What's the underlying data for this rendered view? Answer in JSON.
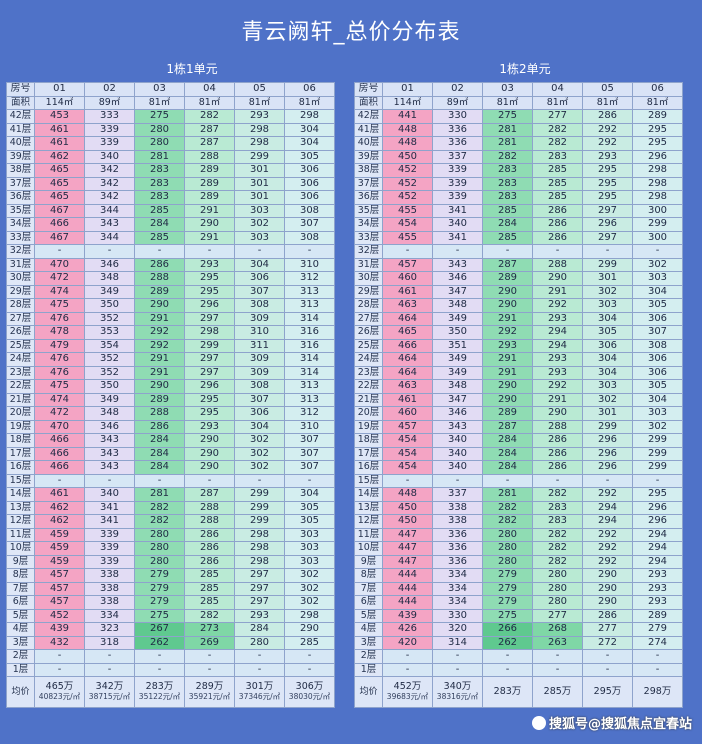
{
  "title": "青云阙轩_总价分布表",
  "watermark": "搜狐号@搜狐焦点宜春站",
  "labels": {
    "room": "房号",
    "area": "面积",
    "avg": "均价"
  },
  "colors": {
    "background": "#4f72c8",
    "pink": "#f4a4c4",
    "green": "#8fdcb3"
  },
  "buildings": [
    {
      "name": "1栋1单元",
      "rooms": [
        "01",
        "02",
        "03",
        "04",
        "05",
        "06"
      ],
      "areas": [
        "114㎡",
        "89㎡",
        "81㎡",
        "81㎡",
        "81㎡",
        "81㎡"
      ],
      "floors": [
        {
          "f": "42层",
          "v": [
            "453",
            "333",
            "275",
            "282",
            "293",
            "298"
          ]
        },
        {
          "f": "41层",
          "v": [
            "461",
            "339",
            "280",
            "287",
            "298",
            "304"
          ]
        },
        {
          "f": "40层",
          "v": [
            "461",
            "339",
            "280",
            "287",
            "298",
            "304"
          ]
        },
        {
          "f": "39层",
          "v": [
            "462",
            "340",
            "281",
            "288",
            "299",
            "305"
          ]
        },
        {
          "f": "38层",
          "v": [
            "465",
            "342",
            "283",
            "289",
            "301",
            "306"
          ]
        },
        {
          "f": "37层",
          "v": [
            "465",
            "342",
            "283",
            "289",
            "301",
            "306"
          ]
        },
        {
          "f": "36层",
          "v": [
            "465",
            "342",
            "283",
            "289",
            "301",
            "306"
          ]
        },
        {
          "f": "35层",
          "v": [
            "467",
            "344",
            "285",
            "291",
            "303",
            "308"
          ]
        },
        {
          "f": "34层",
          "v": [
            "466",
            "343",
            "284",
            "290",
            "302",
            "307"
          ]
        },
        {
          "f": "33层",
          "v": [
            "467",
            "344",
            "285",
            "291",
            "303",
            "308"
          ]
        },
        {
          "f": "32层",
          "v": [
            "-",
            "-",
            "-",
            "-",
            "-",
            "-"
          ]
        },
        {
          "f": "31层",
          "v": [
            "470",
            "346",
            "286",
            "293",
            "304",
            "310"
          ]
        },
        {
          "f": "30层",
          "v": [
            "472",
            "348",
            "288",
            "295",
            "306",
            "312"
          ]
        },
        {
          "f": "29层",
          "v": [
            "474",
            "349",
            "289",
            "295",
            "307",
            "313"
          ]
        },
        {
          "f": "28层",
          "v": [
            "475",
            "350",
            "290",
            "296",
            "308",
            "313"
          ]
        },
        {
          "f": "27层",
          "v": [
            "476",
            "352",
            "291",
            "297",
            "309",
            "314"
          ]
        },
        {
          "f": "26层",
          "v": [
            "478",
            "353",
            "292",
            "298",
            "310",
            "316"
          ]
        },
        {
          "f": "25层",
          "v": [
            "479",
            "354",
            "292",
            "299",
            "311",
            "316"
          ]
        },
        {
          "f": "24层",
          "v": [
            "476",
            "352",
            "291",
            "297",
            "309",
            "314"
          ]
        },
        {
          "f": "23层",
          "v": [
            "476",
            "352",
            "291",
            "297",
            "309",
            "314"
          ]
        },
        {
          "f": "22层",
          "v": [
            "475",
            "350",
            "290",
            "296",
            "308",
            "313"
          ]
        },
        {
          "f": "21层",
          "v": [
            "474",
            "349",
            "289",
            "295",
            "307",
            "313"
          ]
        },
        {
          "f": "20层",
          "v": [
            "472",
            "348",
            "288",
            "295",
            "306",
            "312"
          ]
        },
        {
          "f": "19层",
          "v": [
            "470",
            "346",
            "286",
            "293",
            "304",
            "310"
          ]
        },
        {
          "f": "18层",
          "v": [
            "466",
            "343",
            "284",
            "290",
            "302",
            "307"
          ]
        },
        {
          "f": "17层",
          "v": [
            "466",
            "343",
            "284",
            "290",
            "302",
            "307"
          ]
        },
        {
          "f": "16层",
          "v": [
            "466",
            "343",
            "284",
            "290",
            "302",
            "307"
          ]
        },
        {
          "f": "15层",
          "v": [
            "-",
            "-",
            "-",
            "-",
            "-",
            "-"
          ]
        },
        {
          "f": "14层",
          "v": [
            "461",
            "340",
            "281",
            "287",
            "299",
            "304"
          ]
        },
        {
          "f": "13层",
          "v": [
            "462",
            "341",
            "282",
            "288",
            "299",
            "305"
          ]
        },
        {
          "f": "12层",
          "v": [
            "462",
            "341",
            "282",
            "288",
            "299",
            "305"
          ]
        },
        {
          "f": "11层",
          "v": [
            "459",
            "339",
            "280",
            "286",
            "298",
            "303"
          ]
        },
        {
          "f": "10层",
          "v": [
            "459",
            "339",
            "280",
            "286",
            "298",
            "303"
          ]
        },
        {
          "f": "9层",
          "v": [
            "459",
            "339",
            "280",
            "286",
            "298",
            "303"
          ]
        },
        {
          "f": "8层",
          "v": [
            "457",
            "338",
            "279",
            "285",
            "297",
            "302"
          ]
        },
        {
          "f": "7层",
          "v": [
            "457",
            "338",
            "279",
            "285",
            "297",
            "302"
          ]
        },
        {
          "f": "6层",
          "v": [
            "457",
            "338",
            "279",
            "285",
            "297",
            "302"
          ]
        },
        {
          "f": "5层",
          "v": [
            "452",
            "334",
            "275",
            "282",
            "293",
            "298"
          ]
        },
        {
          "f": "4层",
          "v": [
            "439",
            "323",
            "267",
            "273",
            "284",
            "290"
          ]
        },
        {
          "f": "3层",
          "v": [
            "432",
            "318",
            "262",
            "269",
            "280",
            "285"
          ]
        },
        {
          "f": "2层",
          "v": [
            "-",
            "-",
            "-",
            "-",
            "-",
            "-"
          ]
        },
        {
          "f": "1层",
          "v": [
            "-",
            "-",
            "-",
            "-",
            "-",
            "-"
          ]
        }
      ],
      "avg": [
        {
          "t": "465万",
          "u": "40823元/㎡"
        },
        {
          "t": "342万",
          "u": "38715元/㎡"
        },
        {
          "t": "283万",
          "u": "35122元/㎡"
        },
        {
          "t": "289万",
          "u": "35921元/㎡"
        },
        {
          "t": "301万",
          "u": "37346元/㎡"
        },
        {
          "t": "306万",
          "u": "38030元/㎡"
        }
      ]
    },
    {
      "name": "1栋2单元",
      "rooms": [
        "01",
        "02",
        "03",
        "04",
        "05",
        "06"
      ],
      "areas": [
        "114㎡",
        "89㎡",
        "81㎡",
        "81㎡",
        "81㎡",
        "81㎡"
      ],
      "floors": [
        {
          "f": "42层",
          "v": [
            "441",
            "330",
            "275",
            "277",
            "286",
            "289"
          ]
        },
        {
          "f": "41层",
          "v": [
            "448",
            "336",
            "281",
            "282",
            "292",
            "295"
          ]
        },
        {
          "f": "40层",
          "v": [
            "448",
            "336",
            "281",
            "282",
            "292",
            "295"
          ]
        },
        {
          "f": "39层",
          "v": [
            "450",
            "337",
            "282",
            "283",
            "293",
            "296"
          ]
        },
        {
          "f": "38层",
          "v": [
            "452",
            "339",
            "283",
            "285",
            "295",
            "298"
          ]
        },
        {
          "f": "37层",
          "v": [
            "452",
            "339",
            "283",
            "285",
            "295",
            "298"
          ]
        },
        {
          "f": "36层",
          "v": [
            "452",
            "339",
            "283",
            "285",
            "295",
            "298"
          ]
        },
        {
          "f": "35层",
          "v": [
            "455",
            "341",
            "285",
            "286",
            "297",
            "300"
          ]
        },
        {
          "f": "34层",
          "v": [
            "454",
            "340",
            "284",
            "286",
            "296",
            "299"
          ]
        },
        {
          "f": "33层",
          "v": [
            "455",
            "341",
            "285",
            "286",
            "297",
            "300"
          ]
        },
        {
          "f": "32层",
          "v": [
            "-",
            "-",
            "-",
            "-",
            "-",
            "-"
          ]
        },
        {
          "f": "31层",
          "v": [
            "457",
            "343",
            "287",
            "288",
            "299",
            "302"
          ]
        },
        {
          "f": "30层",
          "v": [
            "460",
            "346",
            "289",
            "290",
            "301",
            "303"
          ]
        },
        {
          "f": "29层",
          "v": [
            "461",
            "347",
            "290",
            "291",
            "302",
            "304"
          ]
        },
        {
          "f": "28层",
          "v": [
            "463",
            "348",
            "290",
            "292",
            "303",
            "305"
          ]
        },
        {
          "f": "27层",
          "v": [
            "464",
            "349",
            "291",
            "293",
            "304",
            "306"
          ]
        },
        {
          "f": "26层",
          "v": [
            "465",
            "350",
            "292",
            "294",
            "305",
            "307"
          ]
        },
        {
          "f": "25层",
          "v": [
            "466",
            "351",
            "293",
            "294",
            "306",
            "308"
          ]
        },
        {
          "f": "24层",
          "v": [
            "464",
            "349",
            "291",
            "293",
            "304",
            "306"
          ]
        },
        {
          "f": "23层",
          "v": [
            "464",
            "349",
            "291",
            "293",
            "304",
            "306"
          ]
        },
        {
          "f": "22层",
          "v": [
            "463",
            "348",
            "290",
            "292",
            "303",
            "305"
          ]
        },
        {
          "f": "21层",
          "v": [
            "461",
            "347",
            "290",
            "291",
            "302",
            "304"
          ]
        },
        {
          "f": "20层",
          "v": [
            "460",
            "346",
            "289",
            "290",
            "301",
            "303"
          ]
        },
        {
          "f": "19层",
          "v": [
            "457",
            "343",
            "287",
            "288",
            "299",
            "302"
          ]
        },
        {
          "f": "18层",
          "v": [
            "454",
            "340",
            "284",
            "286",
            "296",
            "299"
          ]
        },
        {
          "f": "17层",
          "v": [
            "454",
            "340",
            "284",
            "286",
            "296",
            "299"
          ]
        },
        {
          "f": "16层",
          "v": [
            "454",
            "340",
            "284",
            "286",
            "296",
            "299"
          ]
        },
        {
          "f": "15层",
          "v": [
            "-",
            "-",
            "-",
            "-",
            "-",
            "-"
          ]
        },
        {
          "f": "14层",
          "v": [
            "448",
            "337",
            "281",
            "282",
            "292",
            "295"
          ]
        },
        {
          "f": "13层",
          "v": [
            "450",
            "338",
            "282",
            "283",
            "294",
            "296"
          ]
        },
        {
          "f": "12层",
          "v": [
            "450",
            "338",
            "282",
            "283",
            "294",
            "296"
          ]
        },
        {
          "f": "11层",
          "v": [
            "447",
            "336",
            "280",
            "282",
            "292",
            "294"
          ]
        },
        {
          "f": "10层",
          "v": [
            "447",
            "336",
            "280",
            "282",
            "292",
            "294"
          ]
        },
        {
          "f": "9层",
          "v": [
            "447",
            "336",
            "280",
            "282",
            "292",
            "294"
          ]
        },
        {
          "f": "8层",
          "v": [
            "444",
            "334",
            "279",
            "280",
            "290",
            "293"
          ]
        },
        {
          "f": "7层",
          "v": [
            "444",
            "334",
            "279",
            "280",
            "290",
            "293"
          ]
        },
        {
          "f": "6层",
          "v": [
            "444",
            "334",
            "279",
            "280",
            "290",
            "293"
          ]
        },
        {
          "f": "5层",
          "v": [
            "439",
            "330",
            "275",
            "277",
            "286",
            "289"
          ]
        },
        {
          "f": "4层",
          "v": [
            "426",
            "320",
            "266",
            "268",
            "277",
            "279"
          ]
        },
        {
          "f": "3层",
          "v": [
            "420",
            "314",
            "262",
            "263",
            "272",
            "274"
          ]
        },
        {
          "f": "2层",
          "v": [
            "-",
            "-",
            "-",
            "-",
            "-",
            "-"
          ]
        },
        {
          "f": "1层",
          "v": [
            "-",
            "-",
            "-",
            "-",
            "-",
            "-"
          ]
        }
      ],
      "avg": [
        {
          "t": "452万",
          "u": "39683元/㎡"
        },
        {
          "t": "340万",
          "u": "38316元/㎡"
        },
        {
          "t": "283万",
          "u": ""
        },
        {
          "t": "285万",
          "u": ""
        },
        {
          "t": "295万",
          "u": ""
        },
        {
          "t": "298万",
          "u": ""
        }
      ]
    }
  ]
}
